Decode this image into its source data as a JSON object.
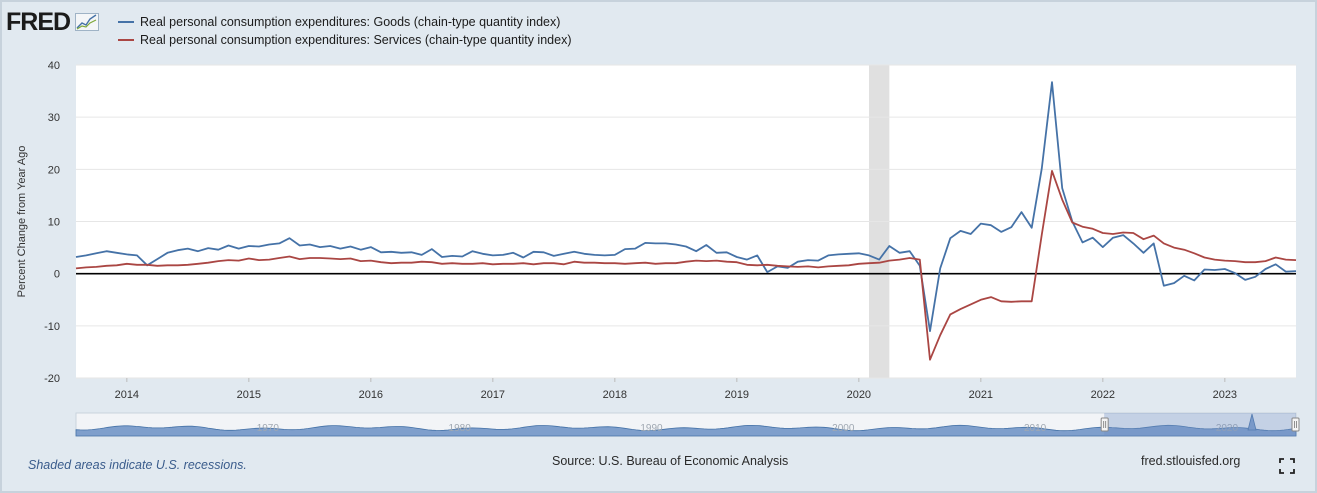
{
  "logo": {
    "text": "FRED",
    "icon": "fred-graph-icon"
  },
  "legend": [
    {
      "label": "Real personal consumption expenditures: Goods (chain-type quantity index)",
      "color": "#4572a7"
    },
    {
      "label": "Real personal consumption expenditures: Services (chain-type quantity index)",
      "color": "#aa4643"
    }
  ],
  "footer": {
    "recession_note": "Shaded areas indicate U.S. recessions.",
    "source": "Source: U.S. Bureau of Economic Analysis",
    "site": "fred.stlouisfed.org",
    "fullscreen_icon": "fullscreen-icon"
  },
  "navigator": {
    "tick_labels": [
      "1970",
      "1980",
      "1990",
      "2000",
      "2010",
      "2020"
    ]
  },
  "chart_data": {
    "type": "line",
    "title": "",
    "xlabel": "",
    "ylabel": "Percent Change from Year Ago",
    "x_start": "2013-08",
    "x_end": "2023-08",
    "x_tick_labels": [
      "2014",
      "2015",
      "2016",
      "2017",
      "2018",
      "2019",
      "2020",
      "2021",
      "2022",
      "2023"
    ],
    "ylim": [
      -20,
      40
    ],
    "y_ticks": [
      -20,
      -10,
      0,
      10,
      20,
      30,
      40
    ],
    "recession": {
      "start": "2020-02",
      "end": "2020-04"
    },
    "grid": true,
    "colors": {
      "goods": "#4572a7",
      "services": "#aa4643",
      "zero_line": "#000000",
      "recession": "#e0e0e0"
    },
    "series": [
      {
        "name": "Real personal consumption expenditures: Goods (chain-type quantity index)",
        "points": [
          [
            "2013-08",
            3.2
          ],
          [
            "2013-09",
            3.5
          ],
          [
            "2013-10",
            3.9
          ],
          [
            "2013-11",
            4.3
          ],
          [
            "2013-12",
            4.0
          ],
          [
            "2014-01",
            3.7
          ],
          [
            "2014-02",
            3.5
          ],
          [
            "2014-03",
            1.6
          ],
          [
            "2014-04",
            2.8
          ],
          [
            "2014-05",
            4.0
          ],
          [
            "2014-06",
            4.5
          ],
          [
            "2014-07",
            4.8
          ],
          [
            "2014-08",
            4.3
          ],
          [
            "2014-09",
            4.9
          ],
          [
            "2014-10",
            4.6
          ],
          [
            "2014-11",
            5.4
          ],
          [
            "2014-12",
            4.8
          ],
          [
            "2015-01",
            5.3
          ],
          [
            "2015-02",
            5.2
          ],
          [
            "2015-03",
            5.6
          ],
          [
            "2015-04",
            5.8
          ],
          [
            "2015-05",
            6.8
          ],
          [
            "2015-06",
            5.4
          ],
          [
            "2015-07",
            5.6
          ],
          [
            "2015-08",
            5.1
          ],
          [
            "2015-09",
            5.3
          ],
          [
            "2015-10",
            4.8
          ],
          [
            "2015-11",
            5.2
          ],
          [
            "2015-12",
            4.6
          ],
          [
            "2016-01",
            5.1
          ],
          [
            "2016-02",
            4.1
          ],
          [
            "2016-03",
            4.2
          ],
          [
            "2016-04",
            4.0
          ],
          [
            "2016-05",
            4.1
          ],
          [
            "2016-06",
            3.6
          ],
          [
            "2016-07",
            4.7
          ],
          [
            "2016-08",
            3.2
          ],
          [
            "2016-09",
            3.4
          ],
          [
            "2016-10",
            3.3
          ],
          [
            "2016-11",
            4.3
          ],
          [
            "2016-12",
            3.8
          ],
          [
            "2017-01",
            3.5
          ],
          [
            "2017-02",
            3.6
          ],
          [
            "2017-03",
            4.0
          ],
          [
            "2017-04",
            3.1
          ],
          [
            "2017-05",
            4.2
          ],
          [
            "2017-06",
            4.1
          ],
          [
            "2017-07",
            3.4
          ],
          [
            "2017-08",
            3.8
          ],
          [
            "2017-09",
            4.2
          ],
          [
            "2017-10",
            3.8
          ],
          [
            "2017-11",
            3.6
          ],
          [
            "2017-12",
            3.5
          ],
          [
            "2018-01",
            3.6
          ],
          [
            "2018-02",
            4.7
          ],
          [
            "2018-03",
            4.8
          ],
          [
            "2018-04",
            5.9
          ],
          [
            "2018-05",
            5.8
          ],
          [
            "2018-06",
            5.8
          ],
          [
            "2018-07",
            5.6
          ],
          [
            "2018-08",
            5.2
          ],
          [
            "2018-09",
            4.3
          ],
          [
            "2018-10",
            5.5
          ],
          [
            "2018-11",
            4.0
          ],
          [
            "2018-12",
            4.1
          ],
          [
            "2019-01",
            3.2
          ],
          [
            "2019-02",
            2.7
          ],
          [
            "2019-03",
            3.5
          ],
          [
            "2019-04",
            0.3
          ],
          [
            "2019-05",
            1.4
          ],
          [
            "2019-06",
            1.1
          ],
          [
            "2019-07",
            2.3
          ],
          [
            "2019-08",
            2.6
          ],
          [
            "2019-09",
            2.5
          ],
          [
            "2019-10",
            3.5
          ],
          [
            "2019-11",
            3.7
          ],
          [
            "2019-12",
            3.8
          ],
          [
            "2020-01",
            3.9
          ],
          [
            "2020-02",
            3.5
          ],
          [
            "2020-03",
            2.7
          ],
          [
            "2020-04",
            5.3
          ],
          [
            "2020-05",
            4.0
          ],
          [
            "2020-06",
            4.3
          ],
          [
            "2020-07",
            1.5
          ],
          [
            "2020-08",
            -11.0
          ],
          [
            "2020-09",
            1.0
          ],
          [
            "2020-10",
            6.8
          ],
          [
            "2020-11",
            8.2
          ],
          [
            "2020-12",
            7.6
          ],
          [
            "2021-01",
            9.6
          ],
          [
            "2021-02",
            9.3
          ],
          [
            "2021-03",
            8.0
          ],
          [
            "2021-04",
            8.9
          ],
          [
            "2021-05",
            11.8
          ],
          [
            "2021-06",
            8.8
          ],
          [
            "2021-07",
            20.2
          ],
          [
            "2021-08",
            36.7
          ],
          [
            "2021-09",
            16.4
          ],
          [
            "2021-10",
            10.0
          ],
          [
            "2021-11",
            6.0
          ],
          [
            "2021-12",
            6.9
          ],
          [
            "2022-01",
            5.1
          ],
          [
            "2022-02",
            6.9
          ],
          [
            "2022-03",
            7.4
          ],
          [
            "2022-04",
            5.8
          ],
          [
            "2022-05",
            4.0
          ],
          [
            "2022-06",
            5.8
          ],
          [
            "2022-07",
            -2.3
          ],
          [
            "2022-08",
            -1.8
          ],
          [
            "2022-09",
            -0.4
          ],
          [
            "2022-10",
            -1.3
          ],
          [
            "2022-11",
            0.8
          ],
          [
            "2022-12",
            0.7
          ],
          [
            "2023-01",
            0.9
          ],
          [
            "2023-02",
            0.1
          ],
          [
            "2023-03",
            -1.2
          ],
          [
            "2023-04",
            -0.6
          ],
          [
            "2023-05",
            0.9
          ],
          [
            "2023-06",
            1.8
          ],
          [
            "2023-07",
            0.4
          ],
          [
            "2023-08",
            0.5
          ]
        ]
      },
      {
        "name": "Real personal consumption expenditures: Services (chain-type quantity index)",
        "points": [
          [
            "2013-08",
            1.0
          ],
          [
            "2013-09",
            1.2
          ],
          [
            "2013-10",
            1.3
          ],
          [
            "2013-11",
            1.5
          ],
          [
            "2013-12",
            1.6
          ],
          [
            "2014-01",
            1.9
          ],
          [
            "2014-02",
            1.7
          ],
          [
            "2014-03",
            1.7
          ],
          [
            "2014-04",
            1.5
          ],
          [
            "2014-05",
            1.6
          ],
          [
            "2014-06",
            1.6
          ],
          [
            "2014-07",
            1.7
          ],
          [
            "2014-08",
            1.9
          ],
          [
            "2014-09",
            2.1
          ],
          [
            "2014-10",
            2.4
          ],
          [
            "2014-11",
            2.6
          ],
          [
            "2014-12",
            2.5
          ],
          [
            "2015-01",
            2.9
          ],
          [
            "2015-02",
            2.6
          ],
          [
            "2015-03",
            2.7
          ],
          [
            "2015-04",
            3.0
          ],
          [
            "2015-05",
            3.3
          ],
          [
            "2015-06",
            2.8
          ],
          [
            "2015-07",
            3.0
          ],
          [
            "2015-08",
            3.0
          ],
          [
            "2015-09",
            2.9
          ],
          [
            "2015-10",
            2.8
          ],
          [
            "2015-11",
            2.9
          ],
          [
            "2015-12",
            2.4
          ],
          [
            "2016-01",
            2.5
          ],
          [
            "2016-02",
            2.2
          ],
          [
            "2016-03",
            2.0
          ],
          [
            "2016-04",
            2.1
          ],
          [
            "2016-05",
            2.1
          ],
          [
            "2016-06",
            2.3
          ],
          [
            "2016-07",
            2.2
          ],
          [
            "2016-08",
            1.9
          ],
          [
            "2016-09",
            2.0
          ],
          [
            "2016-10",
            1.9
          ],
          [
            "2016-11",
            1.9
          ],
          [
            "2016-12",
            2.0
          ],
          [
            "2017-01",
            1.8
          ],
          [
            "2017-02",
            1.9
          ],
          [
            "2017-03",
            1.9
          ],
          [
            "2017-04",
            2.0
          ],
          [
            "2017-05",
            1.8
          ],
          [
            "2017-06",
            2.0
          ],
          [
            "2017-07",
            2.0
          ],
          [
            "2017-08",
            1.8
          ],
          [
            "2017-09",
            2.3
          ],
          [
            "2017-10",
            2.1
          ],
          [
            "2017-11",
            2.1
          ],
          [
            "2017-12",
            2.0
          ],
          [
            "2018-01",
            2.0
          ],
          [
            "2018-02",
            1.9
          ],
          [
            "2018-03",
            2.0
          ],
          [
            "2018-04",
            2.1
          ],
          [
            "2018-05",
            1.9
          ],
          [
            "2018-06",
            2.0
          ],
          [
            "2018-07",
            2.0
          ],
          [
            "2018-08",
            2.3
          ],
          [
            "2018-09",
            2.5
          ],
          [
            "2018-10",
            2.4
          ],
          [
            "2018-11",
            2.5
          ],
          [
            "2018-12",
            2.3
          ],
          [
            "2019-01",
            2.2
          ],
          [
            "2019-02",
            1.7
          ],
          [
            "2019-03",
            1.6
          ],
          [
            "2019-04",
            1.7
          ],
          [
            "2019-05",
            1.5
          ],
          [
            "2019-06",
            1.4
          ],
          [
            "2019-07",
            1.3
          ],
          [
            "2019-08",
            1.4
          ],
          [
            "2019-09",
            1.2
          ],
          [
            "2019-10",
            1.4
          ],
          [
            "2019-11",
            1.5
          ],
          [
            "2019-12",
            1.6
          ],
          [
            "2020-01",
            1.9
          ],
          [
            "2020-02",
            2.0
          ],
          [
            "2020-03",
            2.1
          ],
          [
            "2020-04",
            2.5
          ],
          [
            "2020-05",
            2.7
          ],
          [
            "2020-06",
            3.0
          ],
          [
            "2020-07",
            2.7
          ],
          [
            "2020-08",
            -16.5
          ],
          [
            "2020-09",
            -11.8
          ],
          [
            "2020-10",
            -7.8
          ],
          [
            "2020-11",
            -6.8
          ],
          [
            "2020-12",
            -5.9
          ],
          [
            "2021-01",
            -5.0
          ],
          [
            "2021-02",
            -4.5
          ],
          [
            "2021-03",
            -5.3
          ],
          [
            "2021-04",
            -5.4
          ],
          [
            "2021-05",
            -5.3
          ],
          [
            "2021-06",
            -5.3
          ],
          [
            "2021-07",
            7.5
          ],
          [
            "2021-08",
            19.7
          ],
          [
            "2021-09",
            14.2
          ],
          [
            "2021-10",
            9.8
          ],
          [
            "2021-11",
            9.0
          ],
          [
            "2021-12",
            8.6
          ],
          [
            "2022-01",
            7.8
          ],
          [
            "2022-02",
            7.6
          ],
          [
            "2022-03",
            7.9
          ],
          [
            "2022-04",
            7.8
          ],
          [
            "2022-05",
            6.6
          ],
          [
            "2022-06",
            7.3
          ],
          [
            "2022-07",
            5.8
          ],
          [
            "2022-08",
            5.0
          ],
          [
            "2022-09",
            4.6
          ],
          [
            "2022-10",
            3.9
          ],
          [
            "2022-11",
            3.1
          ],
          [
            "2022-12",
            2.7
          ],
          [
            "2023-01",
            2.5
          ],
          [
            "2023-02",
            2.4
          ],
          [
            "2023-03",
            2.2
          ],
          [
            "2023-04",
            2.2
          ],
          [
            "2023-05",
            2.4
          ],
          [
            "2023-06",
            3.1
          ],
          [
            "2023-07",
            2.7
          ],
          [
            "2023-08",
            2.6
          ]
        ]
      }
    ]
  }
}
